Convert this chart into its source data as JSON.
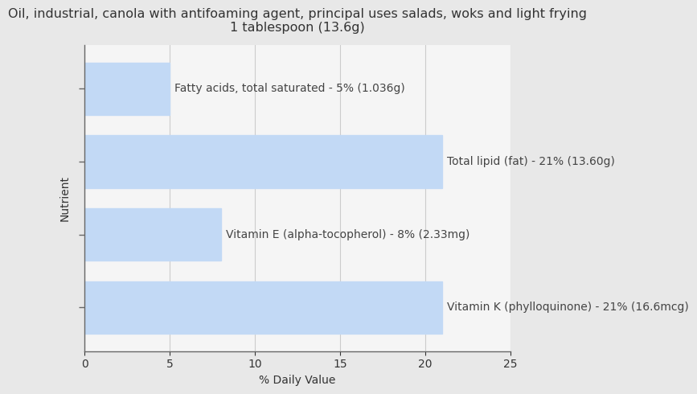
{
  "title": "Oil, industrial, canola with antifoaming agent, principal uses salads, woks and light frying\n1 tablespoon (13.6g)",
  "xlabel": "% Daily Value",
  "ylabel": "Nutrient",
  "background_color": "#e8e8e8",
  "plot_background_color": "#f5f5f5",
  "bar_color": "#c2d9f5",
  "grid_color": "#cccccc",
  "text_color": "#333333",
  "label_color": "#444444",
  "xlim": [
    0,
    25
  ],
  "xticks": [
    0,
    5,
    10,
    15,
    20,
    25
  ],
  "nutrients": [
    "Fatty acids, total saturated",
    "Total lipid (fat)",
    "Vitamin E (alpha-tocopherol)",
    "Vitamin K (phylloquinone)"
  ],
  "values": [
    5,
    21,
    8,
    21
  ],
  "labels": [
    "Fatty acids, total saturated - 5% (1.036g)",
    "Total lipid (fat) - 21% (13.60g)",
    "Vitamin E (alpha-tocopherol) - 8% (2.33mg)",
    "Vitamin K (phylloquinone) - 21% (16.6mcg)"
  ],
  "label_after_bar": [
    false,
    true,
    false,
    true
  ],
  "title_fontsize": 11.5,
  "axis_label_fontsize": 10,
  "tick_fontsize": 10,
  "bar_label_fontsize": 10,
  "bar_height": 0.72,
  "bar_positions": [
    3,
    2,
    1,
    0
  ]
}
